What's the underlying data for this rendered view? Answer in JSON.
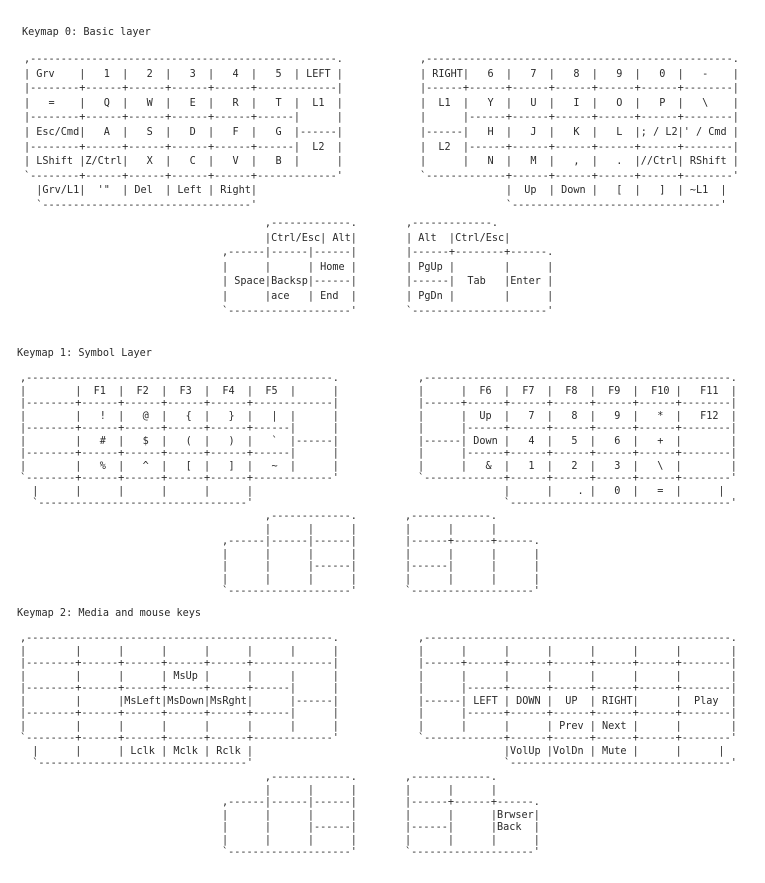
{
  "layers": [
    {
      "title": "Keymap 0: Basic layer",
      "left_hand": [
        ",--------------------------------------------------.",
        "| Grv    |   1  |   2  |   3  |   4  |   5  | LEFT |",
        "|--------+------+------+------+------+-------------|",
        "|   =    |   Q  |   W  |   E  |   R  |   T  |  L1  |",
        "|--------+------+------+------+------+------|      |",
        "| Esc/Cmd|   A  |   S  |   D  |   F  |   G  |------|",
        "|--------+------+------+------+------+------|  L2  |",
        "| LShift |Z/Ctrl|   X  |   C  |   V  |   B  |      |",
        "`--------+------+------+------+------+-------------'",
        "  |Grv/L1|  '\"  | Del  | Left | Right|",
        "  `----------------------------------'"
      ],
      "right_hand": [
        ",--------------------------------------------------.",
        "| RIGHT|   6  |   7  |   8  |   9  |   0  |   -    |",
        "|------+------+------+------+------+------+--------|",
        "|  L1  |   Y  |   U  |   I  |   O  |   P  |   \\    |",
        "|      |------+------+------+------+------+--------|",
        "|------|   H  |   J  |   K  |   L  |; / L2|' / Cmd |",
        "|  L2  |------+------+------+------+------+--------|",
        "|      |   N  |   M  |   ,  |   .  |//Ctrl| RShift |",
        "`-------------+------+------+------+------+--------'",
        "              |  Up  | Down |   [  |   ]  | ~L1  |",
        "              `----------------------------------'"
      ],
      "left_thumb": [
        "       ,-------------.",
        "       |Ctrl/Esc| Alt|",
        ",------|------|------|",
        "|      |      | Home |",
        "| Space|Backsp|------|",
        "|      |ace   | End  |",
        "`--------------------'"
      ],
      "right_thumb": [
        ",-------------.",
        "| Alt  |Ctrl/Esc|",
        "|------+--------+------.",
        "| PgUp |        |      |",
        "|------|  Tab   |Enter |",
        "| PgDn |        |      |",
        "`----------------------'"
      ]
    },
    {
      "title": "Keymap 1: Symbol Layer",
      "left_hand": [
        ",--------------------------------------------------.",
        "|        |  F1  |  F2  |  F3  |  F4  |  F5  |      |",
        "|--------+------+------+------+------+-------------|",
        "|        |   !  |   @  |   {  |   }  |   |  |      |",
        "|--------+------+------+------+------+------|      |",
        "|        |   #  |   $  |   (  |   )  |   `  |------|",
        "|--------+------+------+------+------+------|      |",
        "|        |   %  |   ^  |   [  |   ]  |   ~  |      |",
        "`--------+------+------+------+------+-------------'",
        "  |      |      |      |      |      |",
        "  `----------------------------------'"
      ],
      "right_hand": [
        ",--------------------------------------------------.",
        "|      |  F6  |  F7  |  F8  |  F9  |  F10 |   F11  |",
        "|------+------+------+------+------+------+--------|",
        "|      |  Up  |   7  |   8  |   9  |   *  |   F12  |",
        "|      |------+------+------+------+------+--------|",
        "|------| Down |   4  |   5  |   6  |   +  |        |",
        "|      |------+------+------+------+------+--------|",
        "|      |   &  |   1  |   2  |   3  |   \\  |        |",
        "`-------------+------+------+------+------+--------'",
        "              |      |    . |   0  |   =  |      |",
        "              `------------------------------------'"
      ],
      "left_thumb": [
        "       ,-------------.",
        "       |      |      |",
        ",------|------|------|",
        "|      |      |      |",
        "|      |      |------|",
        "|      |      |      |",
        "`--------------------'"
      ],
      "right_thumb": [
        ",-------------.",
        "|      |      |",
        "|------+------+------.",
        "|      |      |      |",
        "|------|      |      |",
        "|      |      |      |",
        "`--------------------'"
      ]
    },
    {
      "title": "Keymap 2: Media and mouse keys",
      "left_hand": [
        ",--------------------------------------------------.",
        "|        |      |      |      |      |      |      |",
        "|--------+------+------+------+------+-------------|",
        "|        |      |      | MsUp |      |      |      |",
        "|--------+------+------+------+------+------|      |",
        "|        |      |MsLeft|MsDown|MsRght|      |------|",
        "|--------+------+------+------+------+------|      |",
        "|        |      |      |      |      |      |      |",
        "`--------+------+------+------+------+-------------'",
        "  |      |      | Lclk | Mclk | Rclk |",
        "  `----------------------------------'"
      ],
      "right_hand": [
        ",--------------------------------------------------.",
        "|      |      |      |      |      |      |        |",
        "|------+------+------+------+------+------+--------|",
        "|      |      |      |      |      |      |        |",
        "|      |------+------+------+------+------+--------|",
        "|------| LEFT | DOWN |  UP  | RIGHT|      |  Play  |",
        "|      |------+------+------+------+------+--------|",
        "|      |      |      | Prev | Next |      |        |",
        "`-------------+------+------+------+------+--------'",
        "              |VolUp |VolDn | Mute |      |      |",
        "              `------------------------------------'"
      ],
      "left_thumb": [
        "       ,-------------.",
        "       |      |      |",
        ",------|------|------|",
        "|      |      |      |",
        "|      |      |------|",
        "|      |      |      |",
        "`--------------------'"
      ],
      "right_thumb": [
        ",-------------.",
        "|      |      |",
        "|------+------+------.",
        "|      |      |Brwser|",
        "|------|      |Back  |",
        "|      |      |      |",
        "`--------------------'"
      ]
    }
  ]
}
